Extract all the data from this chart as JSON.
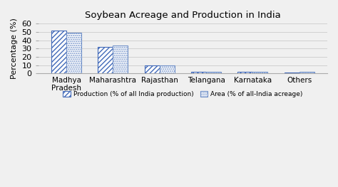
{
  "title": "Soybean Acreage and Production in India",
  "categories": [
    "Madhya\nPradesh",
    "Maharashtra",
    "Rajasthan",
    "Telangana",
    "Karnataka",
    "Others"
  ],
  "production": [
    52,
    32,
    9.5,
    2.5,
    2.5,
    1.5
  ],
  "area": [
    49.5,
    34,
    9.5,
    2.0,
    2.5,
    2.0
  ],
  "ylabel": "Percentage (%)",
  "ylim": [
    0,
    60
  ],
  "yticks": [
    0,
    10,
    20,
    30,
    40,
    50,
    60
  ],
  "production_hatch_color": "#4169b8",
  "production_label": "Production (% of all India production)",
  "area_label": "Area (% of all-India acreage)",
  "background_color": "#f0f0f0",
  "bar_width": 0.32
}
